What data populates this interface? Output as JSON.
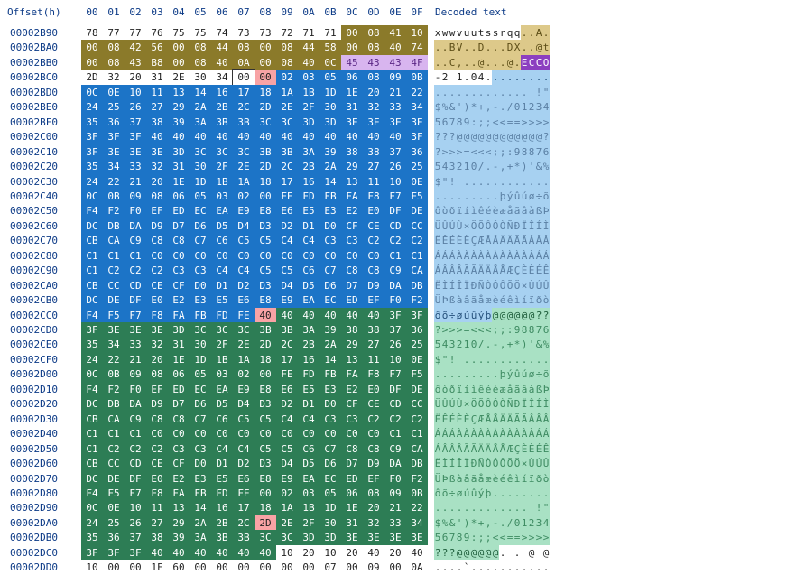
{
  "header": {
    "offset_label": "Offset(h)",
    "columns": [
      "00",
      "01",
      "02",
      "03",
      "04",
      "05",
      "06",
      "07",
      "08",
      "09",
      "0A",
      "0B",
      "0C",
      "0D",
      "0E",
      "0F"
    ],
    "decoded_label": "Decoded text"
  },
  "colors": {
    "header_text": "#0d3b87",
    "olive": "#8b7a2a",
    "olive_decoded": "#ddc98a",
    "blue": "#1c74c7",
    "blue_decoded": "#a7d1f1",
    "green": "#2d7d55",
    "green_decoded": "#a9e1c4",
    "purple": "#8c3fc0",
    "purple_light": "#d8b5ef",
    "marker": "#f8a3a5",
    "black_sel": "#111111"
  },
  "rows": [
    {
      "offset": "00002B90",
      "bytes": [
        "78",
        "77",
        "77",
        "76",
        "75",
        "75",
        "74",
        "73",
        "73",
        "72",
        "71",
        "71",
        "00",
        "08",
        "41",
        "10"
      ],
      "text": "xwwvuutssrqq..A."
    },
    {
      "offset": "00002BA0",
      "bytes": [
        "00",
        "08",
        "42",
        "56",
        "00",
        "08",
        "44",
        "08",
        "00",
        "08",
        "44",
        "58",
        "00",
        "08",
        "40",
        "74"
      ],
      "text": "..BV..D...DX..@t"
    },
    {
      "offset": "00002BB0",
      "bytes": [
        "00",
        "08",
        "43",
        "B8",
        "00",
        "08",
        "40",
        "0A",
        "00",
        "08",
        "40",
        "0C",
        "45",
        "43",
        "43",
        "4F"
      ],
      "text": "..C,..@...@.ECCO"
    },
    {
      "offset": "00002BC0",
      "bytes": [
        "2D",
        "32",
        "20",
        "31",
        "2E",
        "30",
        "34",
        "00",
        "00",
        "02",
        "03",
        "05",
        "06",
        "08",
        "09",
        "0B"
      ],
      "text": "-2 1.04........."
    },
    {
      "offset": "00002BD0",
      "bytes": [
        "0C",
        "0E",
        "10",
        "11",
        "13",
        "14",
        "16",
        "17",
        "18",
        "1A",
        "1B",
        "1D",
        "1E",
        "20",
        "21",
        "22"
      ],
      "text": "............. !\""
    },
    {
      "offset": "00002BE0",
      "bytes": [
        "24",
        "25",
        "26",
        "27",
        "29",
        "2A",
        "2B",
        "2C",
        "2D",
        "2E",
        "2F",
        "30",
        "31",
        "32",
        "33",
        "34"
      ],
      "text": "$%&')*+,-./01234"
    },
    {
      "offset": "00002BF0",
      "bytes": [
        "35",
        "36",
        "37",
        "38",
        "39",
        "3A",
        "3B",
        "3B",
        "3C",
        "3C",
        "3D",
        "3D",
        "3E",
        "3E",
        "3E",
        "3E"
      ],
      "text": "56789:;;<<==>>>>"
    },
    {
      "offset": "00002C00",
      "bytes": [
        "3F",
        "3F",
        "3F",
        "40",
        "40",
        "40",
        "40",
        "40",
        "40",
        "40",
        "40",
        "40",
        "40",
        "40",
        "40",
        "3F"
      ],
      "text": "???@@@@@@@@@@@@?"
    },
    {
      "offset": "00002C10",
      "bytes": [
        "3F",
        "3E",
        "3E",
        "3E",
        "3D",
        "3C",
        "3C",
        "3C",
        "3B",
        "3B",
        "3A",
        "39",
        "38",
        "38",
        "37",
        "36"
      ],
      "text": "?>>>=<<<;;:98876"
    },
    {
      "offset": "00002C20",
      "bytes": [
        "35",
        "34",
        "33",
        "32",
        "31",
        "30",
        "2F",
        "2E",
        "2D",
        "2C",
        "2B",
        "2A",
        "29",
        "27",
        "26",
        "25"
      ],
      "text": "543210/.-,+*)'&%"
    },
    {
      "offset": "00002C30",
      "bytes": [
        "24",
        "22",
        "21",
        "20",
        "1E",
        "1D",
        "1B",
        "1A",
        "18",
        "17",
        "16",
        "14",
        "13",
        "11",
        "10",
        "0E"
      ],
      "text": "$\"! ............"
    },
    {
      "offset": "00002C40",
      "bytes": [
        "0C",
        "0B",
        "09",
        "08",
        "06",
        "05",
        "03",
        "02",
        "00",
        "FE",
        "FD",
        "FB",
        "FA",
        "F8",
        "F7",
        "F5"
      ],
      "text": ".........þýûúø÷õ"
    },
    {
      "offset": "00002C50",
      "bytes": [
        "F4",
        "F2",
        "F0",
        "EF",
        "ED",
        "EC",
        "EA",
        "E9",
        "E8",
        "E6",
        "E5",
        "E3",
        "E2",
        "E0",
        "DF",
        "DE"
      ],
      "text": "ôòðïíìêéèæåãâàßÞ"
    },
    {
      "offset": "00002C60",
      "bytes": [
        "DC",
        "DB",
        "DA",
        "D9",
        "D7",
        "D6",
        "D5",
        "D4",
        "D3",
        "D2",
        "D1",
        "D0",
        "CF",
        "CE",
        "CD",
        "CC"
      ],
      "text": "ÜÛÚÙ×ÖÕÔÓÒÑÐÏÎÍÌ"
    },
    {
      "offset": "00002C70",
      "bytes": [
        "CB",
        "CA",
        "C9",
        "C8",
        "C8",
        "C7",
        "C6",
        "C5",
        "C5",
        "C4",
        "C4",
        "C3",
        "C3",
        "C2",
        "C2",
        "C2"
      ],
      "text": "ËÊÉÈÈÇÆÅÅÄÄÃÃÂÂÂ"
    },
    {
      "offset": "00002C80",
      "bytes": [
        "C1",
        "C1",
        "C1",
        "C0",
        "C0",
        "C0",
        "C0",
        "C0",
        "C0",
        "C0",
        "C0",
        "C0",
        "C0",
        "C0",
        "C1",
        "C1"
      ],
      "text": "ÁÁÁÀÀÀÀÀÀÀÀÀÀÀÁÁ"
    },
    {
      "offset": "00002C90",
      "bytes": [
        "C1",
        "C2",
        "C2",
        "C2",
        "C3",
        "C3",
        "C4",
        "C4",
        "C5",
        "C5",
        "C6",
        "C7",
        "C8",
        "C8",
        "C9",
        "CA"
      ],
      "text": "ÁÂÂÂÃÃÄÄÅÅÆÇÈÈÉÊ"
    },
    {
      "offset": "00002CA0",
      "bytes": [
        "CB",
        "CC",
        "CD",
        "CE",
        "CF",
        "D0",
        "D1",
        "D2",
        "D3",
        "D4",
        "D5",
        "D6",
        "D7",
        "D9",
        "DA",
        "DB"
      ],
      "text": "ËÌÍÎÏÐÑÒÓÔÕÖ×ÙÚÛ"
    },
    {
      "offset": "00002CB0",
      "bytes": [
        "DC",
        "DE",
        "DF",
        "E0",
        "E2",
        "E3",
        "E5",
        "E6",
        "E8",
        "E9",
        "EA",
        "EC",
        "ED",
        "EF",
        "F0",
        "F2"
      ],
      "text": "ÜÞßàâãåæèéêìíïðò"
    },
    {
      "offset": "00002CC0",
      "bytes": [
        "F4",
        "F5",
        "F7",
        "F8",
        "FA",
        "FB",
        "FD",
        "FE",
        "40",
        "40",
        "40",
        "40",
        "40",
        "40",
        "3F",
        "3F"
      ],
      "text": "ôõ÷øúûýþ@@@@@@??"
    },
    {
      "offset": "00002CD0",
      "bytes": [
        "3F",
        "3E",
        "3E",
        "3E",
        "3D",
        "3C",
        "3C",
        "3C",
        "3B",
        "3B",
        "3A",
        "39",
        "38",
        "38",
        "37",
        "36"
      ],
      "text": "?>>>=<<<;;:98876"
    },
    {
      "offset": "00002CE0",
      "bytes": [
        "35",
        "34",
        "33",
        "32",
        "31",
        "30",
        "2F",
        "2E",
        "2D",
        "2C",
        "2B",
        "2A",
        "29",
        "27",
        "26",
        "25"
      ],
      "text": "543210/.-,+*)'&%"
    },
    {
      "offset": "00002CF0",
      "bytes": [
        "24",
        "22",
        "21",
        "20",
        "1E",
        "1D",
        "1B",
        "1A",
        "18",
        "17",
        "16",
        "14",
        "13",
        "11",
        "10",
        "0E"
      ],
      "text": "$\"! ............"
    },
    {
      "offset": "00002D00",
      "bytes": [
        "0C",
        "0B",
        "09",
        "08",
        "06",
        "05",
        "03",
        "02",
        "00",
        "FE",
        "FD",
        "FB",
        "FA",
        "F8",
        "F7",
        "F5"
      ],
      "text": ".........þýûúø÷õ"
    },
    {
      "offset": "00002D10",
      "bytes": [
        "F4",
        "F2",
        "F0",
        "EF",
        "ED",
        "EC",
        "EA",
        "E9",
        "E8",
        "E6",
        "E5",
        "E3",
        "E2",
        "E0",
        "DF",
        "DE"
      ],
      "text": "ôòðïíìêéèæåãâàßÞ"
    },
    {
      "offset": "00002D20",
      "bytes": [
        "DC",
        "DB",
        "DA",
        "D9",
        "D7",
        "D6",
        "D5",
        "D4",
        "D3",
        "D2",
        "D1",
        "D0",
        "CF",
        "CE",
        "CD",
        "CC"
      ],
      "text": "ÜÛÚÙ×ÖÕÔÓÒÑÐÏÎÍÌ"
    },
    {
      "offset": "00002D30",
      "bytes": [
        "CB",
        "CA",
        "C9",
        "C8",
        "C8",
        "C7",
        "C6",
        "C5",
        "C5",
        "C4",
        "C4",
        "C3",
        "C3",
        "C2",
        "C2",
        "C2"
      ],
      "text": "ËÊÉÈÈÇÆÅÅÄÄÃÃÂÂÂ"
    },
    {
      "offset": "00002D40",
      "bytes": [
        "C1",
        "C1",
        "C1",
        "C0",
        "C0",
        "C0",
        "C0",
        "C0",
        "C0",
        "C0",
        "C0",
        "C0",
        "C0",
        "C0",
        "C1",
        "C1"
      ],
      "text": "ÁÁÁÀÀÀÀÀÀÀÀÀÀÀÁÁ"
    },
    {
      "offset": "00002D50",
      "bytes": [
        "C1",
        "C2",
        "C2",
        "C2",
        "C3",
        "C3",
        "C4",
        "C4",
        "C5",
        "C5",
        "C6",
        "C7",
        "C8",
        "C8",
        "C9",
        "CA"
      ],
      "text": "ÁÂÂÂÃÃÄÄÅÅÆÇÈÈÉÊ"
    },
    {
      "offset": "00002D60",
      "bytes": [
        "CB",
        "CC",
        "CD",
        "CE",
        "CF",
        "D0",
        "D1",
        "D2",
        "D3",
        "D4",
        "D5",
        "D6",
        "D7",
        "D9",
        "DA",
        "DB"
      ],
      "text": "ËÌÍÎÏÐÑÒÓÔÕÖ×ÙÚÛ"
    },
    {
      "offset": "00002D70",
      "bytes": [
        "DC",
        "DE",
        "DF",
        "E0",
        "E2",
        "E3",
        "E5",
        "E6",
        "E8",
        "E9",
        "EA",
        "EC",
        "ED",
        "EF",
        "F0",
        "F2"
      ],
      "text": "ÜÞßàâãåæèéêìíïðò"
    },
    {
      "offset": "00002D80",
      "bytes": [
        "F4",
        "F5",
        "F7",
        "F8",
        "FA",
        "FB",
        "FD",
        "FE",
        "00",
        "02",
        "03",
        "05",
        "06",
        "08",
        "09",
        "0B"
      ],
      "text": "ôõ÷øúûýþ........"
    },
    {
      "offset": "00002D90",
      "bytes": [
        "0C",
        "0E",
        "10",
        "11",
        "13",
        "14",
        "16",
        "17",
        "18",
        "1A",
        "1B",
        "1D",
        "1E",
        "20",
        "21",
        "22"
      ],
      "text": "............. !\""
    },
    {
      "offset": "00002DA0",
      "bytes": [
        "24",
        "25",
        "26",
        "27",
        "29",
        "2A",
        "2B",
        "2C",
        "2D",
        "2E",
        "2F",
        "30",
        "31",
        "32",
        "33",
        "34"
      ],
      "text": "$%&')*+,-./01234"
    },
    {
      "offset": "00002DB0",
      "bytes": [
        "35",
        "36",
        "37",
        "38",
        "39",
        "3A",
        "3B",
        "3B",
        "3C",
        "3C",
        "3D",
        "3D",
        "3E",
        "3E",
        "3E",
        "3E"
      ],
      "text": "56789:;;<<==>>>>"
    },
    {
      "offset": "00002DC0",
      "bytes": [
        "3F",
        "3F",
        "3F",
        "40",
        "40",
        "40",
        "40",
        "40",
        "40",
        "10",
        "20",
        "10",
        "20",
        "40",
        "20",
        "40"
      ],
      "text": "???@@@@@@. . @ @"
    },
    {
      "offset": "00002DD0",
      "bytes": [
        "10",
        "00",
        "00",
        "1F",
        "60",
        "00",
        "00",
        "00",
        "00",
        "00",
        "00",
        "07",
        "00",
        "09",
        "00",
        "0A"
      ],
      "text": "....`..........."
    }
  ]
}
